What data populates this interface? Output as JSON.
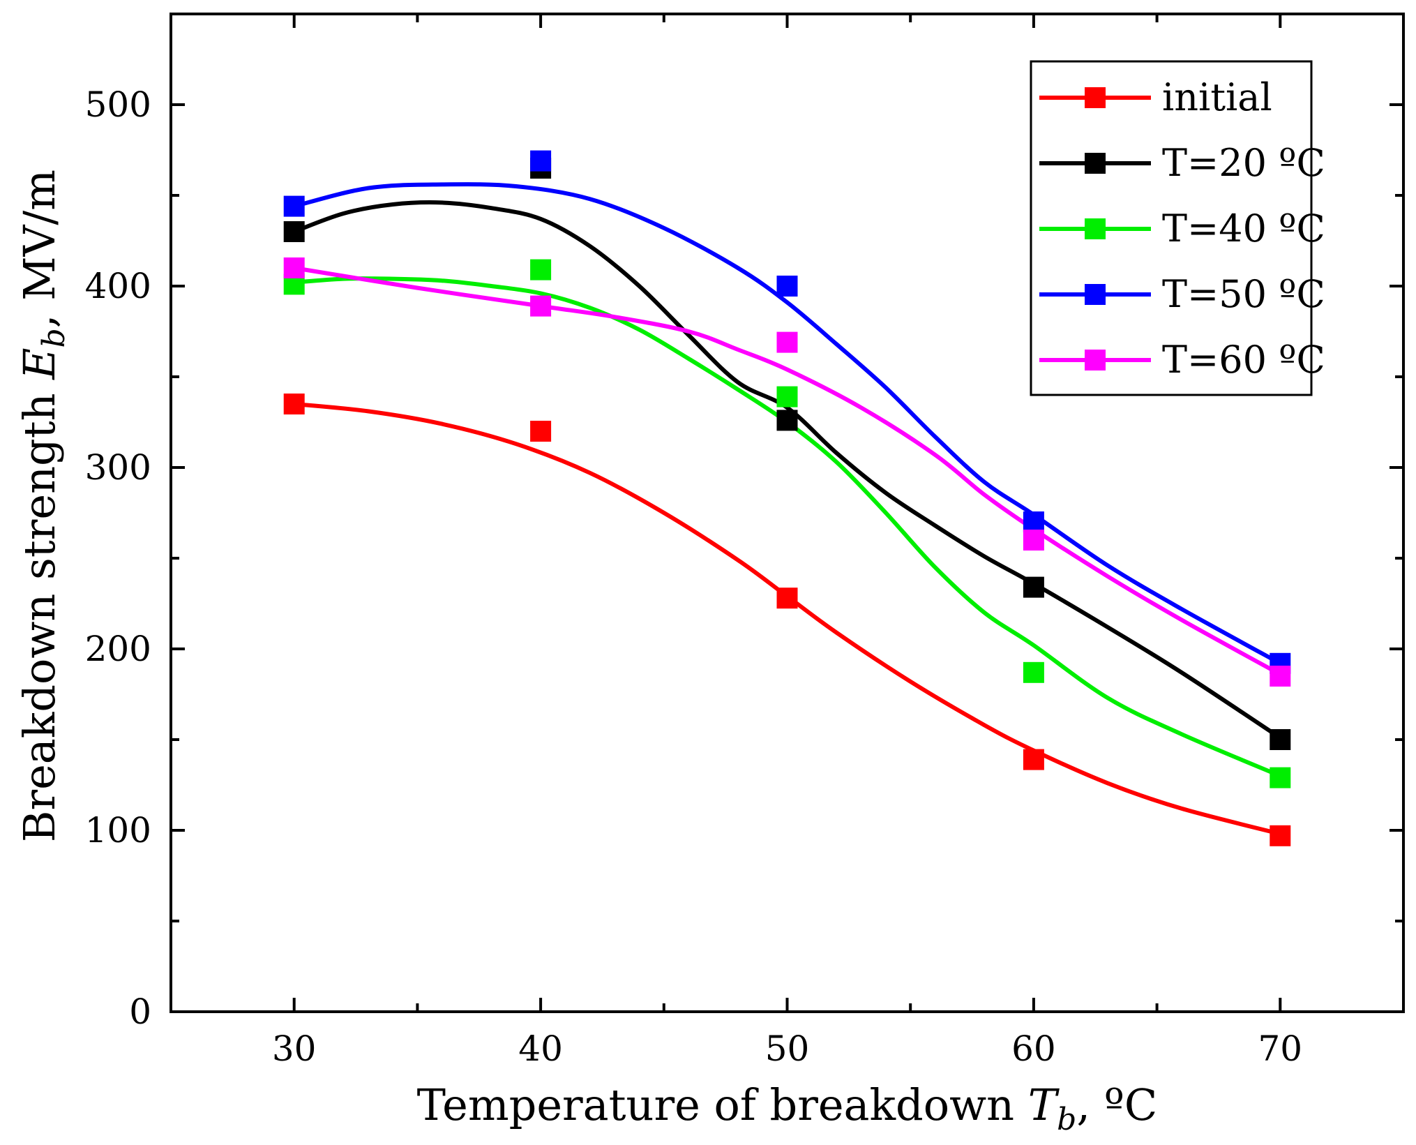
{
  "chart_data": {
    "type": "scatter",
    "xlabel": {
      "main": "Temperature of breakdown ",
      "symbol": "T",
      "sub": "b",
      "unit": ", ºC"
    },
    "ylabel": {
      "main": "Breakdown strength ",
      "symbol": "E",
      "sub": "b",
      "unit": ", MV/m"
    },
    "xlim": [
      25,
      75
    ],
    "ylim": [
      0,
      550
    ],
    "xticks": [
      30,
      40,
      50,
      60,
      70
    ],
    "xminor": [
      35,
      45,
      55,
      65
    ],
    "yticks": [
      0,
      100,
      200,
      300,
      400,
      500
    ],
    "yminor": [
      50,
      150,
      250,
      350,
      450
    ],
    "grid": false,
    "legend_position": "top-right",
    "x": [
      30,
      40,
      50,
      60,
      70
    ],
    "series": [
      {
        "name": "initial",
        "color": "#ff0000",
        "values": [
          335,
          320,
          228,
          139,
          97
        ],
        "fit": [
          [
            30,
            335
          ],
          [
            33,
            331
          ],
          [
            36,
            324
          ],
          [
            39,
            313
          ],
          [
            42,
            297
          ],
          [
            45,
            275
          ],
          [
            48,
            249
          ],
          [
            50,
            229
          ],
          [
            52,
            209
          ],
          [
            55,
            182
          ],
          [
            58,
            158
          ],
          [
            60,
            144
          ],
          [
            63,
            126
          ],
          [
            66,
            112
          ],
          [
            70,
            98
          ]
        ]
      },
      {
        "name": "T=20 ºC",
        "color": "#000000",
        "values": [
          430,
          465,
          326,
          234,
          150
        ],
        "fit": [
          [
            30,
            430
          ],
          [
            32,
            440
          ],
          [
            34,
            445
          ],
          [
            36,
            446
          ],
          [
            38,
            443
          ],
          [
            40,
            437
          ],
          [
            42,
            422
          ],
          [
            44,
            400
          ],
          [
            46,
            373
          ],
          [
            48,
            347
          ],
          [
            50,
            333
          ],
          [
            52,
            308
          ],
          [
            54,
            286
          ],
          [
            56,
            268
          ],
          [
            58,
            251
          ],
          [
            60,
            236
          ],
          [
            63,
            212
          ],
          [
            66,
            187
          ],
          [
            70,
            151
          ]
        ]
      },
      {
        "name": "T=40 ºC",
        "color": "#00ee00",
        "values": [
          401,
          409,
          339,
          187,
          129
        ],
        "fit": [
          [
            30,
            402
          ],
          [
            32,
            404
          ],
          [
            34,
            404
          ],
          [
            36,
            403
          ],
          [
            38,
            400
          ],
          [
            40,
            396
          ],
          [
            42,
            388
          ],
          [
            44,
            376
          ],
          [
            46,
            360
          ],
          [
            48,
            343
          ],
          [
            50,
            325
          ],
          [
            52,
            303
          ],
          [
            54,
            275
          ],
          [
            56,
            245
          ],
          [
            58,
            220
          ],
          [
            60,
            202
          ],
          [
            63,
            173
          ],
          [
            66,
            153
          ],
          [
            70,
            130
          ]
        ]
      },
      {
        "name": "T=50 ºC",
        "color": "#0000ff",
        "values": [
          444,
          469,
          400,
          270,
          192
        ],
        "fit": [
          [
            30,
            444
          ],
          [
            33,
            454
          ],
          [
            36,
            456
          ],
          [
            39,
            455
          ],
          [
            42,
            448
          ],
          [
            45,
            432
          ],
          [
            48,
            410
          ],
          [
            50,
            391
          ],
          [
            52,
            368
          ],
          [
            54,
            344
          ],
          [
            56,
            317
          ],
          [
            58,
            292
          ],
          [
            60,
            274
          ],
          [
            63,
            246
          ],
          [
            66,
            222
          ],
          [
            70,
            192
          ]
        ]
      },
      {
        "name": "T=60 ºC",
        "color": "#ff00ff",
        "values": [
          410,
          389,
          369,
          260,
          185
        ],
        "fit": [
          [
            30,
            410
          ],
          [
            35,
            399
          ],
          [
            40,
            389
          ],
          [
            43,
            383
          ],
          [
            46,
            375
          ],
          [
            48,
            365
          ],
          [
            50,
            354
          ],
          [
            53,
            333
          ],
          [
            56,
            307
          ],
          [
            58,
            285
          ],
          [
            60,
            266
          ],
          [
            63,
            240
          ],
          [
            66,
            216
          ],
          [
            70,
            186
          ]
        ]
      }
    ]
  }
}
